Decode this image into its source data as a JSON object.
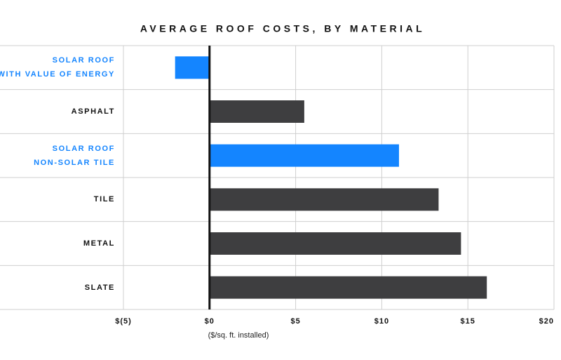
{
  "chart_data": {
    "type": "barh",
    "title": "AVERAGE ROOF COSTS, BY MATERIAL",
    "x_label": "($/sq. ft. installed)",
    "categories": [
      "SOLAR ROOF\nWITH VALUE OF ENERGY",
      "ASPHALT",
      "SOLAR ROOF\nNON-SOLAR TILE",
      "TILE",
      "METAL",
      "SLATE"
    ],
    "values": [
      -2.0,
      5.5,
      11.0,
      13.3,
      14.6,
      16.1
    ],
    "colors": [
      "#1485ff",
      "#3e3e40",
      "#1485ff",
      "#3e3e40",
      "#3e3e40",
      "#3e3e40"
    ],
    "xlim": [
      -5,
      20
    ],
    "xticks": [
      {
        "value": -5,
        "label": "$(5)"
      },
      {
        "value": 0,
        "label": "$0"
      },
      {
        "value": 5,
        "label": "$5"
      },
      {
        "value": 10,
        "label": "$10"
      },
      {
        "value": 15,
        "label": "$15"
      },
      {
        "value": 20,
        "label": "$20"
      }
    ],
    "grid": true
  }
}
